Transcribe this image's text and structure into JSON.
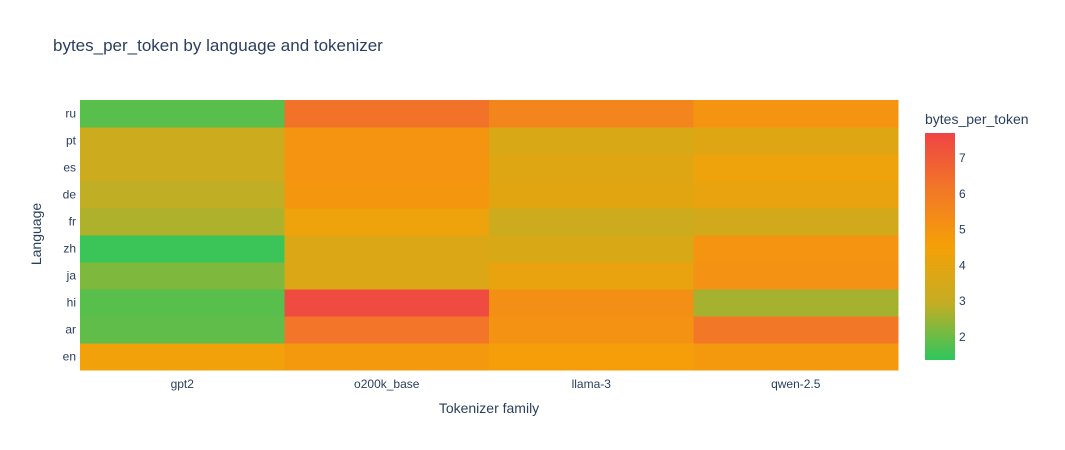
{
  "chart_data": {
    "type": "heatmap",
    "title": "bytes_per_token by language and tokenizer",
    "xlabel": "Tokenizer family",
    "ylabel": "Language",
    "x_categories": [
      "gpt2",
      "o200k_base",
      "llama-3",
      "qwen-2.5"
    ],
    "y_categories": [
      "en",
      "ar",
      "hi",
      "ja",
      "zh",
      "fr",
      "de",
      "es",
      "pt",
      "ru"
    ],
    "z": [
      [
        4.4,
        4.8,
        4.6,
        4.8
      ],
      [
        1.9,
        6.2,
        5.1,
        6.1
      ],
      [
        1.8,
        7.5,
        5.2,
        2.6
      ],
      [
        2.2,
        3.7,
        4.1,
        5.1
      ],
      [
        1.5,
        3.7,
        3.6,
        5.0
      ],
      [
        2.7,
        4.3,
        3.2,
        3.4
      ],
      [
        2.9,
        4.9,
        3.9,
        4.1
      ],
      [
        3.2,
        5.0,
        3.8,
        4.3
      ],
      [
        3.2,
        5.0,
        3.6,
        3.8
      ],
      [
        1.8,
        6.3,
        5.6,
        5.0
      ]
    ],
    "colorbar": {
      "title": "bytes_per_token",
      "range": [
        1.35,
        7.7
      ],
      "ticks": [
        2,
        3,
        4,
        5,
        6,
        7
      ]
    },
    "colorscale": [
      "#2dc65e",
      "#c4ad23",
      "#f5a007",
      "#f27827",
      "#ef4444"
    ]
  }
}
